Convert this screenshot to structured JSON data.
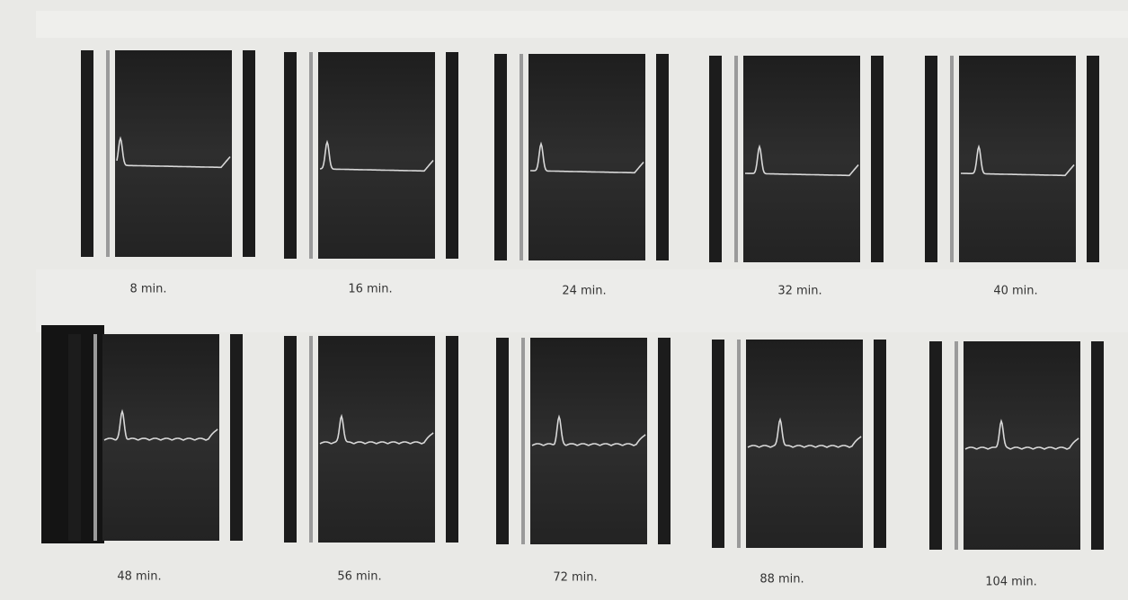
{
  "labels": [
    "8 min.",
    "16 min.",
    "24 min.",
    "32 min.",
    "40 min.",
    "48 min.",
    "56 min.",
    "72 min.",
    "88 min.",
    "104 min."
  ]
}
